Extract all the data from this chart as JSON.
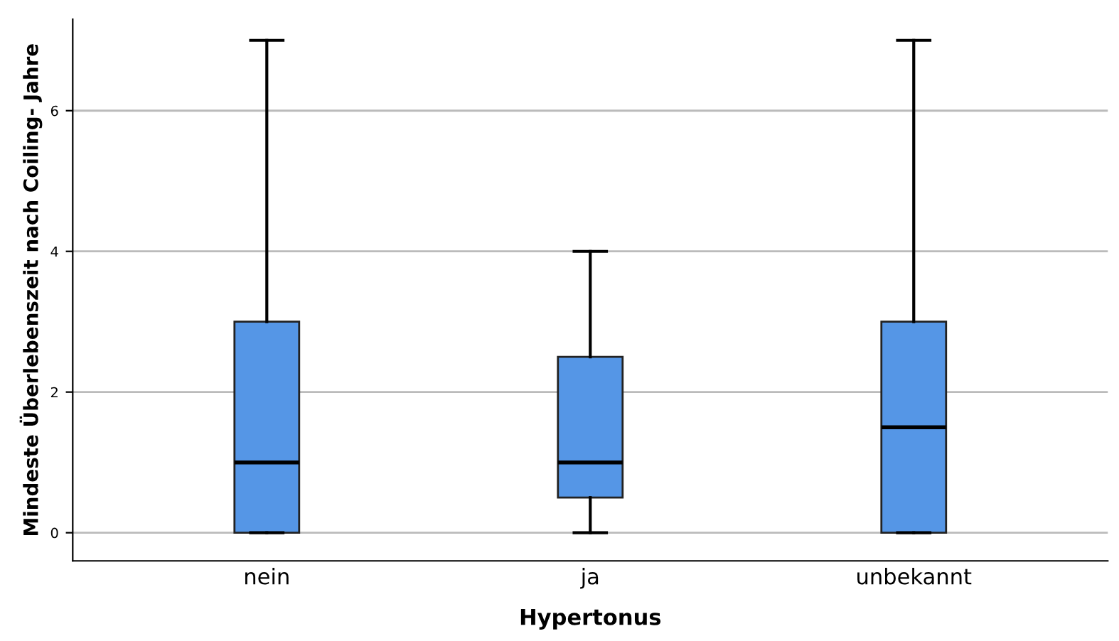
{
  "chart_data": {
    "type": "box",
    "xlabel": "Hypertonus",
    "ylabel": "Mindeste Überlebenszeit nach Coiling- Jahre",
    "categories": [
      "nein",
      "ja",
      "unbekannt"
    ],
    "series": [
      {
        "color": "#5596e6",
        "boxes": [
          {
            "low": 0,
            "q1": 0,
            "median": 1,
            "q3": 3,
            "high": 7
          },
          {
            "low": 0,
            "q1": 0.5,
            "median": 1,
            "q3": 2.5,
            "high": 4
          },
          {
            "low": 0,
            "q1": 0,
            "median": 1.5,
            "q3": 3,
            "high": 7
          }
        ]
      }
    ],
    "ylim": [
      -0.4,
      7.3
    ],
    "yticks": [
      0,
      2,
      4,
      6
    ],
    "grid": "y"
  }
}
